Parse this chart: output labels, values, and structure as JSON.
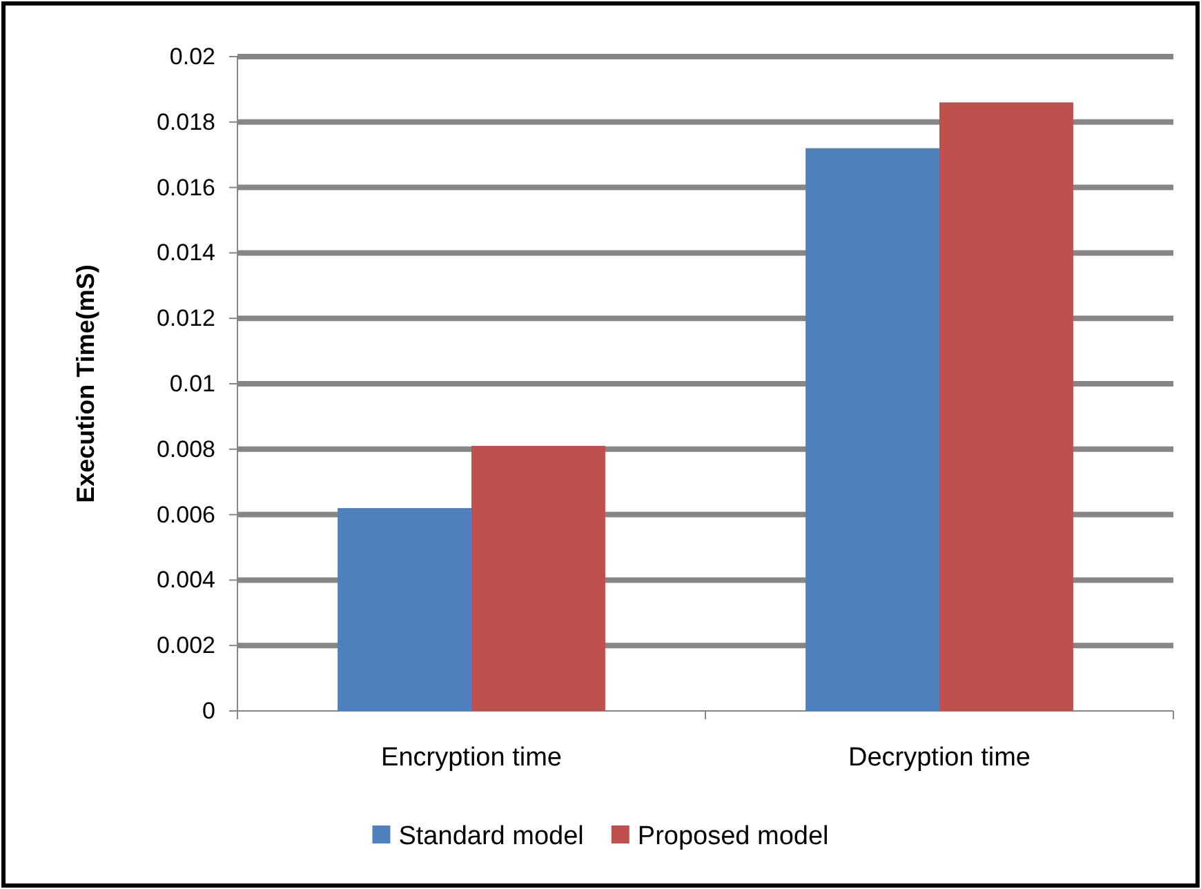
{
  "chart_data": {
    "type": "bar",
    "ylabel": "Execution Time(mS)",
    "categories": [
      "Encryption time",
      "Decryption time"
    ],
    "series": [
      {
        "name": "Standard model",
        "color": "#4f81bd",
        "values": [
          0.0062,
          0.0172
        ]
      },
      {
        "name": "Proposed model",
        "color": "#c0504d",
        "values": [
          0.0081,
          0.0186
        ]
      }
    ],
    "ylim": [
      0,
      0.02
    ],
    "yticks": [
      0,
      0.002,
      0.004,
      0.006,
      0.008,
      0.01,
      0.012,
      0.014,
      0.016,
      0.018,
      0.02
    ],
    "grid": "y",
    "legend": "bottom"
  }
}
